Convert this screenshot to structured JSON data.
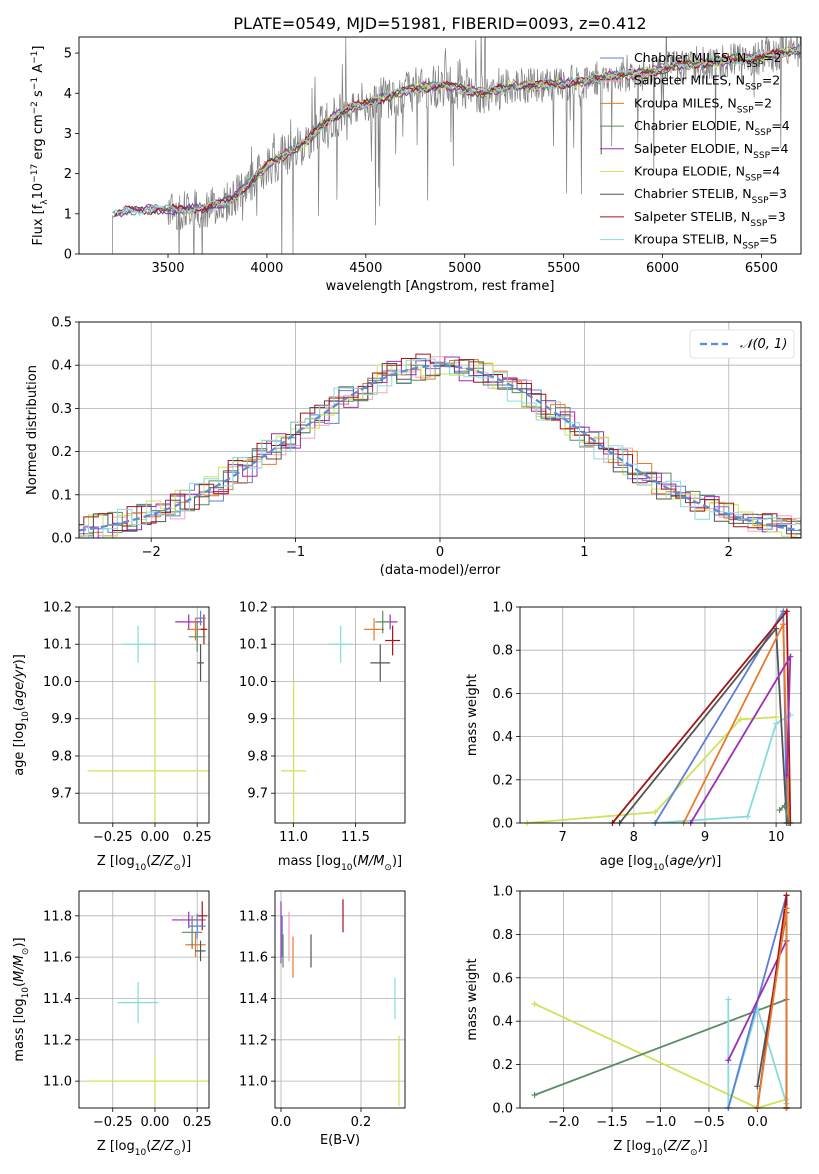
{
  "title": "PLATE=0549, MJD=51981, FIBERID=0093, z=0.412",
  "legend": [
    {
      "label": "Chabrier MILES, N",
      "sub": "SSP",
      "suffix": "=2",
      "color": "#5b7fd6"
    },
    {
      "label": "Salpeter MILES, N",
      "sub": "SSP",
      "suffix": "=2",
      "color": "#f2a6b8"
    },
    {
      "label": "Kroupa MILES, N",
      "sub": "SSP",
      "suffix": "=2",
      "color": "#e57c2e"
    },
    {
      "label": "Chabrier ELODIE, N",
      "sub": "SSP",
      "suffix": "=4",
      "color": "#5b8a63"
    },
    {
      "label": "Salpeter ELODIE, N",
      "sub": "SSP",
      "suffix": "=4",
      "color": "#9d2fb3"
    },
    {
      "label": "Kroupa ELODIE, N",
      "sub": "SSP",
      "suffix": "=4",
      "color": "#cfe25a"
    },
    {
      "label": "Chabrier STELIB, N",
      "sub": "SSP",
      "suffix": "=3",
      "color": "#555555"
    },
    {
      "label": "Salpeter STELIB, N",
      "sub": "SSP",
      "suffix": "=3",
      "color": "#a31616"
    },
    {
      "label": "Kroupa STELIB, N",
      "sub": "SSP",
      "suffix": "=5",
      "color": "#86dbe0"
    }
  ],
  "chart_data": [
    {
      "id": "spectrum",
      "type": "line",
      "xlabel": "wavelength [Angstrom, rest frame]",
      "ylabel": "Flux [f_λ 10^-17 erg cm^-2 s^-1 A^-1]",
      "xlim": [
        3050,
        6700
      ],
      "ylim": [
        0,
        5.4
      ],
      "xticks": [
        3500,
        4000,
        4500,
        5000,
        5500,
        6000,
        6500
      ],
      "yticks": [
        0,
        1,
        2,
        3,
        4,
        5
      ],
      "continuum": {
        "x": [
          3220,
          3300,
          3500,
          3700,
          3800,
          3900,
          4000,
          4100,
          4200,
          4300,
          4400,
          4500,
          4600,
          4700,
          4800,
          4900,
          5000,
          5100,
          5200,
          5300,
          5400,
          5500,
          5600,
          5700,
          5800,
          5900,
          6000,
          6100,
          6200,
          6300,
          6400,
          6500,
          6600,
          6700
        ],
        "y": [
          0.95,
          1.1,
          1.1,
          1.15,
          1.3,
          1.7,
          2.2,
          2.5,
          2.8,
          3.3,
          3.6,
          3.75,
          3.9,
          4.05,
          4.15,
          4.2,
          4.1,
          4.0,
          4.15,
          4.2,
          4.2,
          4.25,
          4.3,
          4.4,
          4.45,
          4.5,
          4.6,
          4.7,
          4.75,
          4.8,
          4.85,
          4.9,
          5.0,
          5.1
        ]
      }
    },
    {
      "id": "residuals",
      "type": "area",
      "xlabel": "(data-model)/error",
      "ylabel": "Normed distribution",
      "xlim": [
        -2.5,
        2.5
      ],
      "ylim": [
        0,
        0.5
      ],
      "xticks": [
        -2,
        -1,
        0,
        1,
        2
      ],
      "yticks": [
        0.0,
        0.1,
        0.2,
        0.3,
        0.4,
        0.5
      ],
      "gaussian_label": "𝒩(0, 1)",
      "gaussian_color": "#5b8cd6"
    },
    {
      "id": "age_vs_Z",
      "type": "scatter",
      "xlabel": "Z [log10(Z/Z⊙)]",
      "ylabel": "age  [log10(age/yr)]",
      "xlim": [
        -0.45,
        0.32
      ],
      "ylim": [
        9.62,
        10.2
      ],
      "xticks": [
        -0.25,
        0.0,
        0.25
      ],
      "yticks": [
        9.7,
        9.8,
        9.9,
        10.0,
        10.1,
        10.2
      ],
      "points": [
        {
          "x": -0.1,
          "y": 10.1,
          "xerr": 0.1,
          "yerr": 0.05,
          "color": "#86dbe0"
        },
        {
          "x": 0.0,
          "y": 9.76,
          "xerr": 0.4,
          "yerr": 0.24,
          "color": "#cfe25a"
        },
        {
          "x": 0.2,
          "y": 10.16,
          "xerr": 0.08,
          "yerr": 0.02,
          "color": "#9d2fb3"
        },
        {
          "x": 0.24,
          "y": 10.14,
          "xerr": 0.05,
          "yerr": 0.03,
          "color": "#e57c2e"
        },
        {
          "x": 0.27,
          "y": 10.05,
          "xerr": 0.02,
          "yerr": 0.05,
          "color": "#555555"
        },
        {
          "x": 0.29,
          "y": 10.14,
          "xerr": 0.02,
          "yerr": 0.04,
          "color": "#a31616"
        },
        {
          "x": 0.25,
          "y": 10.12,
          "xerr": 0.05,
          "yerr": 0.04,
          "color": "#5b8a63"
        },
        {
          "x": 0.27,
          "y": 10.17,
          "xerr": 0.03,
          "yerr": 0.02,
          "color": "#5b7fd6"
        }
      ]
    },
    {
      "id": "age_vs_mass",
      "type": "scatter",
      "xlabel": "mass [log10(M/M⊙)]",
      "xlim": [
        10.85,
        11.9
      ],
      "ylim": [
        9.62,
        10.2
      ],
      "xticks": [
        11.0,
        11.5
      ],
      "yticks": [
        9.7,
        9.8,
        9.9,
        10.0,
        10.1,
        10.2
      ],
      "points": [
        {
          "x": 11.38,
          "y": 10.1,
          "xerr": 0.1,
          "yerr": 0.05,
          "color": "#86dbe0"
        },
        {
          "x": 11.0,
          "y": 9.76,
          "xerr": 0.1,
          "yerr": 0.24,
          "color": "#cfe25a"
        },
        {
          "x": 11.7,
          "y": 10.05,
          "xerr": 0.08,
          "yerr": 0.05,
          "color": "#555555"
        },
        {
          "x": 11.78,
          "y": 10.16,
          "xerr": 0.06,
          "yerr": 0.02,
          "color": "#9d2fb3"
        },
        {
          "x": 11.65,
          "y": 10.14,
          "xerr": 0.08,
          "yerr": 0.03,
          "color": "#e57c2e"
        },
        {
          "x": 11.8,
          "y": 10.11,
          "xerr": 0.06,
          "yerr": 0.04,
          "color": "#a31616"
        },
        {
          "x": 11.72,
          "y": 10.16,
          "xerr": 0.06,
          "yerr": 0.03,
          "color": "#5b8a63"
        }
      ]
    },
    {
      "id": "massweight_vs_age",
      "type": "line",
      "xlabel": "age  [log10(age/yr)]",
      "ylabel": "mass weight",
      "xlim": [
        6.4,
        10.35
      ],
      "ylim": [
        0,
        1.0
      ],
      "xticks": [
        7,
        8,
        9,
        10
      ],
      "yticks": [
        0.0,
        0.2,
        0.4,
        0.6,
        0.8,
        1.0
      ],
      "series": [
        {
          "color": "#cfe25a",
          "x": [
            6.5,
            8.3,
            9.5,
            10.0
          ],
          "y": [
            0.0,
            0.05,
            0.48,
            0.49
          ]
        },
        {
          "color": "#86dbe0",
          "x": [
            8.3,
            9.6,
            10.0,
            10.2
          ],
          "y": [
            0.0,
            0.03,
            0.46,
            0.5
          ]
        },
        {
          "color": "#5b7fd6",
          "x": [
            8.3,
            10.1,
            10.15
          ],
          "y": [
            0.0,
            0.98,
            0.0
          ]
        },
        {
          "color": "#555555",
          "x": [
            7.8,
            10.0,
            10.15
          ],
          "y": [
            0.0,
            0.9,
            0.0
          ]
        },
        {
          "color": "#a31616",
          "x": [
            7.7,
            10.15,
            10.2
          ],
          "y": [
            0.0,
            0.98,
            0.0
          ]
        },
        {
          "color": "#e57c2e",
          "x": [
            8.7,
            10.1,
            10.18
          ],
          "y": [
            0.0,
            0.92,
            0.0
          ]
        },
        {
          "color": "#9d2fb3",
          "x": [
            8.8,
            10.2,
            10.15
          ],
          "y": [
            0.0,
            0.77,
            0.22
          ]
        },
        {
          "color": "#5b8a63",
          "x": [
            10.05,
            10.12,
            10.18
          ],
          "y": [
            0.06,
            0.08,
            0.0
          ]
        }
      ]
    },
    {
      "id": "mass_vs_Z",
      "type": "scatter",
      "xlabel": "Z [log10(Z/Z⊙)]",
      "ylabel": "mass [log10(M/M⊙)]",
      "xlim": [
        -0.45,
        0.32
      ],
      "ylim": [
        10.87,
        11.92
      ],
      "xticks": [
        -0.25,
        0.0,
        0.25
      ],
      "yticks": [
        11.0,
        11.2,
        11.4,
        11.6,
        11.8
      ],
      "points": [
        {
          "x": -0.1,
          "y": 11.38,
          "xerr": 0.12,
          "yerr": 0.1,
          "color": "#86dbe0"
        },
        {
          "x": 0.0,
          "y": 11.0,
          "xerr": 0.4,
          "yerr": 0.12,
          "color": "#cfe25a"
        },
        {
          "x": 0.2,
          "y": 11.78,
          "xerr": 0.1,
          "yerr": 0.04,
          "color": "#9d2fb3"
        },
        {
          "x": 0.24,
          "y": 11.66,
          "xerr": 0.06,
          "yerr": 0.06,
          "color": "#e57c2e"
        },
        {
          "x": 0.22,
          "y": 11.72,
          "xerr": 0.06,
          "yerr": 0.08,
          "color": "#5b8a63"
        },
        {
          "x": 0.28,
          "y": 11.8,
          "xerr": 0.03,
          "yerr": 0.07,
          "color": "#a31616"
        },
        {
          "x": 0.25,
          "y": 11.75,
          "xerr": 0.05,
          "yerr": 0.06,
          "color": "#5b7fd6"
        },
        {
          "x": 0.27,
          "y": 11.63,
          "xerr": 0.03,
          "yerr": 0.05,
          "color": "#555555"
        }
      ]
    },
    {
      "id": "mass_vs_ebv",
      "type": "scatter",
      "xlabel": "E(B-V)",
      "xlim": [
        -0.015,
        0.31
      ],
      "ylim": [
        10.87,
        11.92
      ],
      "xticks": [
        0.0,
        0.2
      ],
      "yticks": [
        11.0,
        11.2,
        11.4,
        11.6,
        11.8
      ],
      "points": [
        {
          "x": 0.0,
          "y": 11.72,
          "xerr": 0.0,
          "yerr": 0.15,
          "color": "#9d2fb3"
        },
        {
          "x": 0.003,
          "y": 11.7,
          "xerr": 0.0,
          "yerr": 0.1,
          "color": "#5b7fd6"
        },
        {
          "x": 0.005,
          "y": 11.63,
          "xerr": 0.0,
          "yerr": 0.08,
          "color": "#5b8a63"
        },
        {
          "x": 0.02,
          "y": 11.7,
          "xerr": 0.0,
          "yerr": 0.12,
          "color": "#f2a6b8"
        },
        {
          "x": 0.03,
          "y": 11.6,
          "xerr": 0.0,
          "yerr": 0.1,
          "color": "#e57c2e"
        },
        {
          "x": 0.075,
          "y": 11.63,
          "xerr": 0.0,
          "yerr": 0.08,
          "color": "#555555"
        },
        {
          "x": 0.155,
          "y": 11.8,
          "xerr": 0.0,
          "yerr": 0.08,
          "color": "#a31616"
        },
        {
          "x": 0.285,
          "y": 11.4,
          "xerr": 0.0,
          "yerr": 0.1,
          "color": "#86dbe0"
        },
        {
          "x": 0.295,
          "y": 11.05,
          "xerr": 0.0,
          "yerr": 0.17,
          "color": "#cfe25a"
        }
      ]
    },
    {
      "id": "massweight_vs_Z",
      "type": "line",
      "xlabel": "Z [log10(Z/Z⊙)]",
      "ylabel": "mass weight",
      "xlim": [
        -2.45,
        0.45
      ],
      "ylim": [
        0,
        1.0
      ],
      "xticks": [
        -2.0,
        -1.5,
        -1.0,
        -0.5,
        0.0
      ],
      "yticks": [
        0.0,
        0.2,
        0.4,
        0.6,
        0.8,
        1.0
      ],
      "series": [
        {
          "color": "#cfe25a",
          "x": [
            -2.3,
            0.0,
            0.3
          ],
          "y": [
            0.48,
            0.0,
            0.04
          ]
        },
        {
          "color": "#5b8a63",
          "x": [
            -2.3,
            0.3
          ],
          "y": [
            0.06,
            0.5
          ]
        },
        {
          "color": "#86dbe0",
          "x": [
            -0.3,
            -0.3,
            0.0,
            0.3
          ],
          "y": [
            0.5,
            0.0,
            0.46,
            0.02
          ]
        },
        {
          "color": "#5b7fd6",
          "x": [
            -0.3,
            0.3,
            0.3
          ],
          "y": [
            0.0,
            0.98,
            0.0
          ]
        },
        {
          "color": "#9d2fb3",
          "x": [
            -0.3,
            0.3,
            0.3
          ],
          "y": [
            0.22,
            0.77,
            0.0
          ]
        },
        {
          "color": "#555555",
          "x": [
            0.0,
            0.3,
            0.3
          ],
          "y": [
            0.1,
            0.9,
            0.0
          ]
        },
        {
          "color": "#a31616",
          "x": [
            0.0,
            0.3,
            0.3
          ],
          "y": [
            0.0,
            0.98,
            0.0
          ]
        },
        {
          "color": "#e57c2e",
          "x": [
            0.0,
            0.3,
            0.3
          ],
          "y": [
            0.0,
            0.92,
            0.0
          ]
        }
      ]
    }
  ]
}
